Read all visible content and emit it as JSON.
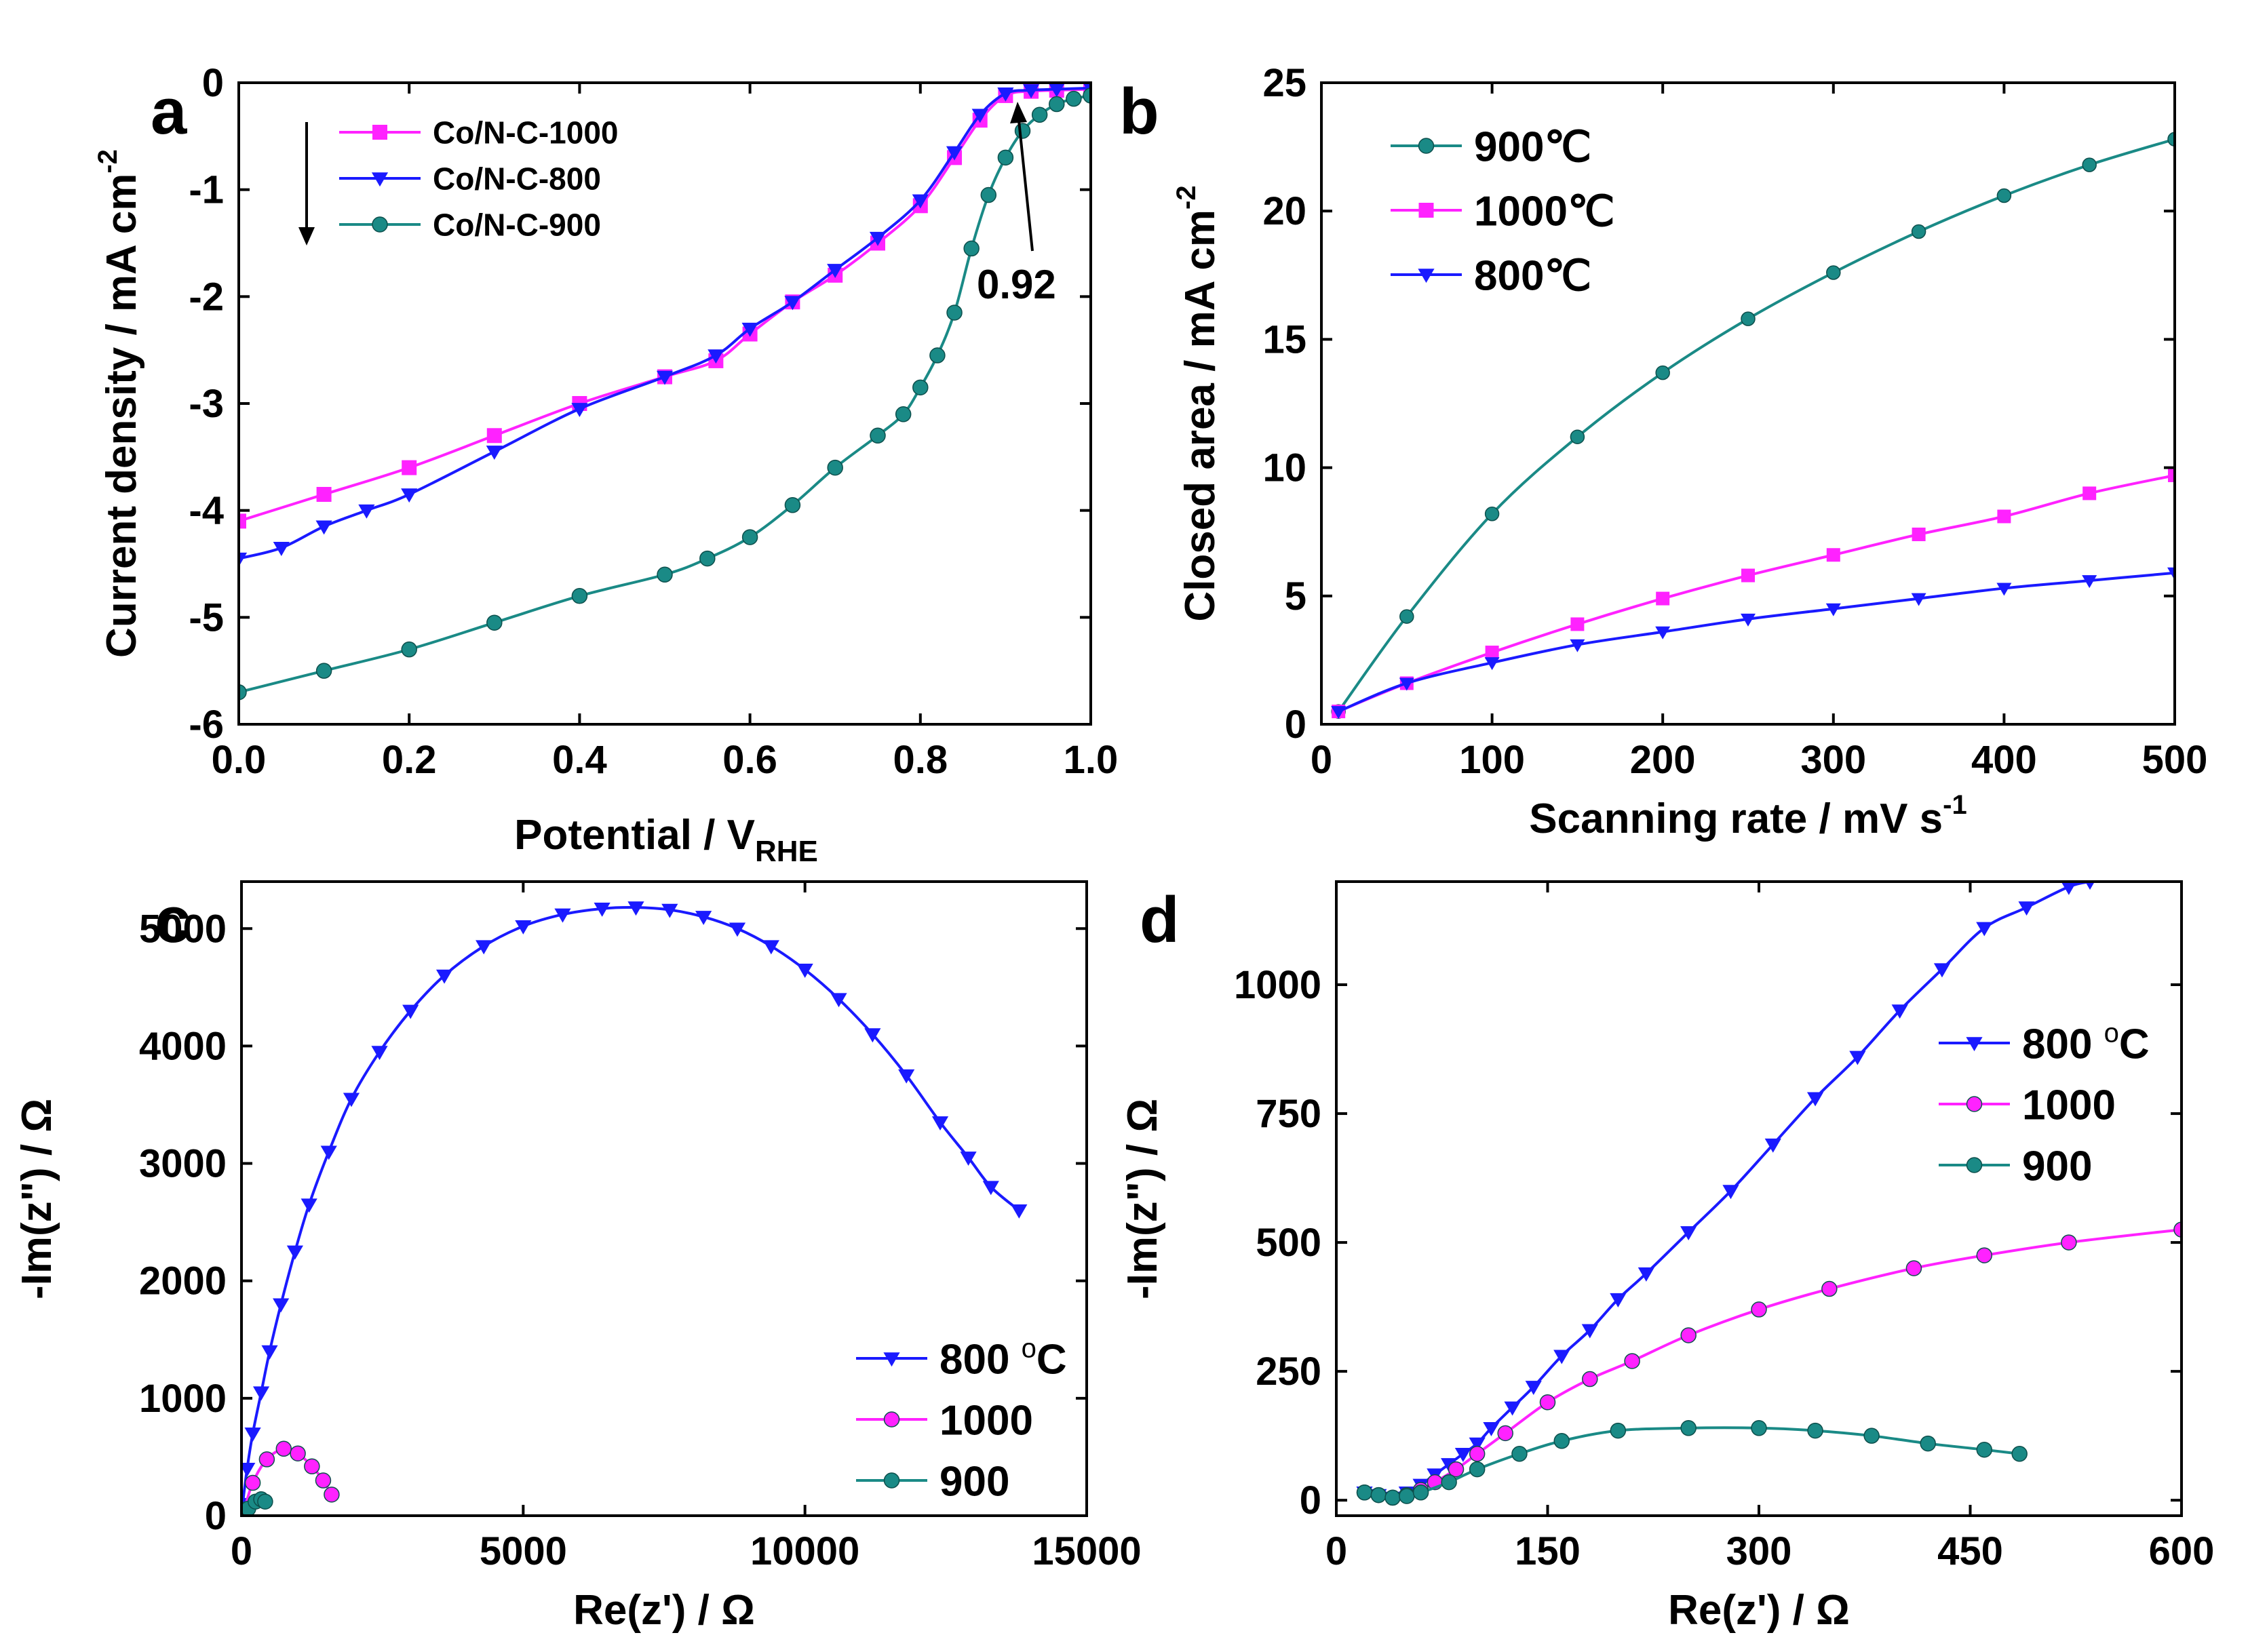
{
  "figure_colors": {
    "magenta": "#ff22ff",
    "blue": "#1a1aff",
    "teal": "#1a8a86",
    "axis": "#000000"
  },
  "chart_data": [
    {
      "panel": "a",
      "type": "line",
      "xlabel": "Potential / V",
      "xlabel_sub": "RHE",
      "ylabel": "Current density / mA cm",
      "ylabel_sup": "-2",
      "xlim": [
        0.0,
        1.0
      ],
      "ylim": [
        -6,
        0
      ],
      "xticks": [
        0.0,
        0.2,
        0.4,
        0.6,
        0.8,
        1.0
      ],
      "xtick_labels": [
        "0.0",
        "0.2",
        "0.4",
        "0.6",
        "0.8",
        "1.0"
      ],
      "yticks": [
        0,
        -1,
        -2,
        -3,
        -4,
        -5,
        -6
      ],
      "ytick_labels": [
        "0",
        "-1",
        "-2",
        "-3",
        "-4",
        "-5",
        "-6"
      ],
      "legend_position": "top-left",
      "annotation": "0.92",
      "series": [
        {
          "name": "Co/N-C-1000",
          "color": "#ff22ff",
          "marker": "square",
          "x": [
            0.0,
            0.1,
            0.2,
            0.3,
            0.4,
            0.5,
            0.56,
            0.6,
            0.65,
            0.7,
            0.75,
            0.8,
            0.84,
            0.87,
            0.9,
            0.93,
            0.96,
            1.0
          ],
          "y": [
            -4.1,
            -3.85,
            -3.6,
            -3.3,
            -3.0,
            -2.75,
            -2.6,
            -2.35,
            -2.05,
            -1.8,
            -1.5,
            -1.15,
            -0.7,
            -0.35,
            -0.12,
            -0.08,
            -0.07,
            -0.06
          ]
        },
        {
          "name": "Co/N-C-800",
          "color": "#1a1aff",
          "marker": "triangle-down",
          "x": [
            0.0,
            0.05,
            0.1,
            0.15,
            0.2,
            0.3,
            0.4,
            0.5,
            0.56,
            0.6,
            0.65,
            0.7,
            0.75,
            0.8,
            0.84,
            0.87,
            0.9,
            0.93,
            0.96,
            1.0
          ],
          "y": [
            -4.45,
            -4.35,
            -4.15,
            -4.0,
            -3.85,
            -3.45,
            -3.05,
            -2.75,
            -2.55,
            -2.3,
            -2.05,
            -1.75,
            -1.45,
            -1.1,
            -0.65,
            -0.3,
            -0.1,
            -0.07,
            -0.06,
            -0.05
          ]
        },
        {
          "name": "Co/N-C-900",
          "color": "#1a8a86",
          "marker": "circle",
          "x": [
            0.0,
            0.1,
            0.2,
            0.3,
            0.4,
            0.5,
            0.55,
            0.6,
            0.65,
            0.7,
            0.75,
            0.78,
            0.8,
            0.82,
            0.84,
            0.86,
            0.88,
            0.9,
            0.92,
            0.94,
            0.96,
            0.98,
            1.0
          ],
          "y": [
            -5.7,
            -5.5,
            -5.3,
            -5.05,
            -4.8,
            -4.6,
            -4.45,
            -4.25,
            -3.95,
            -3.6,
            -3.3,
            -3.1,
            -2.85,
            -2.55,
            -2.15,
            -1.55,
            -1.05,
            -0.7,
            -0.45,
            -0.3,
            -0.2,
            -0.15,
            -0.12
          ]
        }
      ]
    },
    {
      "panel": "b",
      "type": "line",
      "xlabel": "Scanning rate / mV s",
      "xlabel_sup": "-1",
      "ylabel": "Closed area / mA cm",
      "ylabel_sup": "-2",
      "xlim": [
        0,
        500
      ],
      "ylim": [
        0,
        25
      ],
      "xticks": [
        0,
        100,
        200,
        300,
        400,
        500
      ],
      "xtick_labels": [
        "0",
        "100",
        "200",
        "300",
        "400",
        "500"
      ],
      "yticks": [
        0,
        5,
        10,
        15,
        20,
        25
      ],
      "ytick_labels": [
        "0",
        "5",
        "10",
        "15",
        "20",
        "25"
      ],
      "legend_position": "top-left",
      "series": [
        {
          "name": "900℃",
          "color": "#1a8a86",
          "marker": "circle",
          "x": [
            10,
            50,
            100,
            150,
            200,
            250,
            300,
            350,
            400,
            450,
            500
          ],
          "y": [
            0.5,
            4.2,
            8.2,
            11.2,
            13.7,
            15.8,
            17.6,
            19.2,
            20.6,
            21.8,
            22.8
          ]
        },
        {
          "name": "1000℃",
          "color": "#ff22ff",
          "marker": "square",
          "x": [
            10,
            50,
            100,
            150,
            200,
            250,
            300,
            350,
            400,
            450,
            500
          ],
          "y": [
            0.5,
            1.6,
            2.8,
            3.9,
            4.9,
            5.8,
            6.6,
            7.4,
            8.1,
            9.0,
            9.7
          ]
        },
        {
          "name": "800℃",
          "color": "#1a1aff",
          "marker": "triangle-down",
          "x": [
            10,
            50,
            100,
            150,
            200,
            250,
            300,
            350,
            400,
            450,
            500
          ],
          "y": [
            0.5,
            1.6,
            2.4,
            3.1,
            3.6,
            4.1,
            4.5,
            4.9,
            5.3,
            5.6,
            5.9
          ]
        }
      ]
    },
    {
      "panel": "c",
      "type": "line",
      "xlabel": "Re(z') / Ω",
      "ylabel": "-Im(z\") / Ω",
      "xlim": [
        0,
        15000
      ],
      "ylim": [
        0,
        5400
      ],
      "xticks": [
        0,
        5000,
        10000,
        15000
      ],
      "xtick_labels": [
        "0",
        "5000",
        "10000",
        "15000"
      ],
      "yticks": [
        0,
        1000,
        2000,
        3000,
        4000,
        5000
      ],
      "ytick_labels": [
        "0",
        "1000",
        "2000",
        "3000",
        "4000",
        "5000"
      ],
      "legend_position": "bottom-right",
      "series": [
        {
          "name": "800 °C",
          "label_main": "800 ",
          "label_sup": "o",
          "label_tail": "C",
          "color": "#1a1aff",
          "marker": "triangle-down",
          "x": [
            20,
            100,
            200,
            350,
            500,
            700,
            950,
            1200,
            1550,
            1950,
            2450,
            3000,
            3600,
            4300,
            5000,
            5700,
            6400,
            7000,
            7600,
            8200,
            8800,
            9400,
            10000,
            10600,
            11200,
            11800,
            12400,
            12900,
            13300,
            13800
          ],
          "y": [
            100,
            400,
            700,
            1050,
            1400,
            1800,
            2250,
            2650,
            3100,
            3550,
            3950,
            4300,
            4600,
            4850,
            5020,
            5120,
            5170,
            5180,
            5160,
            5100,
            5000,
            4850,
            4650,
            4400,
            4100,
            3750,
            3350,
            3050,
            2800,
            2600
          ]
        },
        {
          "name": "1000",
          "color": "#ff22ff",
          "marker": "circle",
          "x": [
            50,
            200,
            450,
            750,
            1000,
            1250,
            1450,
            1600
          ],
          "y": [
            50,
            280,
            480,
            570,
            530,
            420,
            300,
            180
          ]
        },
        {
          "name": "900",
          "color": "#1a8a86",
          "marker": "circle",
          "x": [
            30,
            120,
            250,
            350,
            420
          ],
          "y": [
            20,
            60,
            120,
            140,
            120
          ]
        }
      ]
    },
    {
      "panel": "d",
      "type": "line",
      "xlabel": "Re(z') / Ω",
      "ylabel": "-Im(z\") / Ω",
      "xlim": [
        0,
        600
      ],
      "ylim": [
        -30,
        1200
      ],
      "xticks": [
        0,
        150,
        300,
        450,
        600
      ],
      "xtick_labels": [
        "0",
        "150",
        "300",
        "450",
        "600"
      ],
      "yticks": [
        0,
        250,
        500,
        750,
        1000
      ],
      "ytick_labels": [
        "0",
        "250",
        "500",
        "750",
        "1000"
      ],
      "legend_position": "center-right",
      "series": [
        {
          "name": "800 °C",
          "label_main": "800 ",
          "label_sup": "o",
          "label_tail": "C",
          "color": "#1a1aff",
          "marker": "triangle-down",
          "x": [
            20,
            30,
            40,
            50,
            60,
            70,
            80,
            90,
            100,
            110,
            125,
            140,
            160,
            180,
            200,
            220,
            250,
            280,
            310,
            340,
            370,
            400,
            430,
            460,
            490,
            520,
            535
          ],
          "y": [
            15,
            10,
            5,
            15,
            30,
            50,
            70,
            90,
            110,
            140,
            180,
            220,
            280,
            330,
            390,
            440,
            520,
            600,
            690,
            780,
            860,
            950,
            1030,
            1110,
            1150,
            1190,
            1200
          ]
        },
        {
          "name": "1000",
          "color": "#ff22ff",
          "marker": "circle",
          "x": [
            20,
            30,
            40,
            50,
            60,
            70,
            85,
            100,
            120,
            150,
            180,
            210,
            250,
            300,
            350,
            410,
            460,
            520,
            600
          ],
          "y": [
            15,
            10,
            5,
            10,
            20,
            35,
            60,
            90,
            130,
            190,
            235,
            270,
            320,
            370,
            410,
            450,
            475,
            500,
            525
          ]
        },
        {
          "name": "900",
          "color": "#1a8a86",
          "marker": "circle",
          "x": [
            20,
            30,
            40,
            50,
            60,
            80,
            100,
            130,
            160,
            200,
            250,
            300,
            340,
            380,
            420,
            460,
            485
          ],
          "y": [
            15,
            10,
            5,
            8,
            15,
            35,
            60,
            90,
            115,
            135,
            140,
            140,
            135,
            125,
            110,
            98,
            90
          ]
        }
      ]
    }
  ]
}
